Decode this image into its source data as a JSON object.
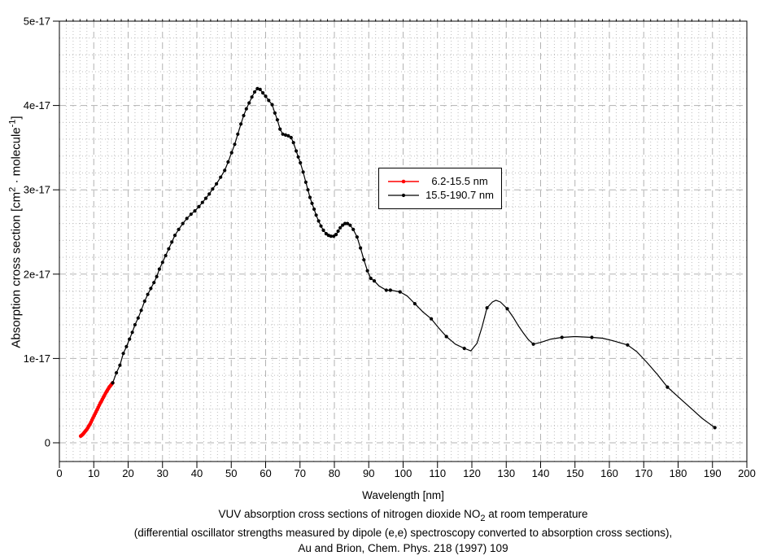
{
  "colors": {
    "background": "#ffffff",
    "axis": "#000000",
    "grid_major": "#b3b3b3",
    "grid_minor": "#bdbdbd",
    "series_red": "#ff0000",
    "series_black": "#000000"
  },
  "caption": {
    "line1_parts": {
      "a": "VUV absorption cross sections of nitrogen dioxide NO",
      "b": "2",
      "c": " at room temperature"
    },
    "line2": "(differential oscillator strengths measured by dipole (e,e) spectroscopy converted to absorption cross sections),",
    "line3": "Au and Brion, Chem. Phys. 218 (1997) 109"
  },
  "chart_data": {
    "type": "line",
    "title": "",
    "xlabel": "Wavelength [nm]",
    "ylabel": "Absorption cross section [cm2 · molecule-1]",
    "ylabel_parts": {
      "a": "Absorption cross section [cm",
      "b": "2",
      "c": " · molecule",
      "d": "-1",
      "e": "]"
    },
    "y_unit": "1e-17 cm^2 / molecule",
    "xlim": [
      0,
      200
    ],
    "ylim": [
      0,
      5
    ],
    "x_ticks": [
      0,
      10,
      20,
      30,
      40,
      50,
      60,
      70,
      80,
      90,
      100,
      110,
      120,
      130,
      140,
      150,
      160,
      170,
      180,
      190,
      200
    ],
    "y_ticks": [
      0,
      1,
      2,
      3,
      4,
      5
    ],
    "y_tick_labels": [
      "0",
      "1e-17",
      "2e-17",
      "3e-17",
      "4e-17",
      "5e-17"
    ],
    "grid": {
      "major": true,
      "minor": true,
      "x_major_step": 10,
      "x_minor_step": 2,
      "y_major_step": 1,
      "y_minor_step": 0.2
    },
    "legend": {
      "position": "upper-center-inside",
      "entries": [
        {
          "label": "6.2-15.5 nm",
          "color": "#ff0000"
        },
        {
          "label": "15.5-190.7 nm",
          "color": "#000000"
        }
      ]
    },
    "series": [
      {
        "name": "6.2-15.5 nm",
        "color": "#ff0000",
        "line_width": 2.5,
        "marker_size": 2.3,
        "points": [
          [
            6.2,
            0.08,
            1
          ],
          [
            6.5,
            0.09,
            1
          ],
          [
            6.8,
            0.1,
            1
          ],
          [
            7.1,
            0.115,
            1
          ],
          [
            7.4,
            0.13,
            1
          ],
          [
            7.7,
            0.145,
            1
          ],
          [
            8.0,
            0.16,
            1
          ],
          [
            8.3,
            0.18,
            1
          ],
          [
            8.6,
            0.2,
            1
          ],
          [
            8.9,
            0.22,
            1
          ],
          [
            9.2,
            0.245,
            1
          ],
          [
            9.5,
            0.27,
            1
          ],
          [
            9.8,
            0.295,
            1
          ],
          [
            10.1,
            0.32,
            1
          ],
          [
            10.4,
            0.345,
            1
          ],
          [
            10.7,
            0.37,
            1
          ],
          [
            11.0,
            0.395,
            1
          ],
          [
            11.3,
            0.42,
            1
          ],
          [
            11.6,
            0.445,
            1
          ],
          [
            11.9,
            0.47,
            1
          ],
          [
            12.2,
            0.49,
            1
          ],
          [
            12.5,
            0.515,
            1
          ],
          [
            12.8,
            0.54,
            1
          ],
          [
            13.1,
            0.56,
            1
          ],
          [
            13.4,
            0.585,
            1
          ],
          [
            13.7,
            0.605,
            1
          ],
          [
            14.0,
            0.625,
            1
          ],
          [
            14.3,
            0.645,
            1
          ],
          [
            14.6,
            0.665,
            1
          ],
          [
            14.9,
            0.68,
            1
          ],
          [
            15.2,
            0.695,
            1
          ],
          [
            15.5,
            0.71,
            1
          ]
        ]
      },
      {
        "name": "15.5-190.7 nm",
        "color": "#000000",
        "line_width": 1.2,
        "marker_size": 2.1,
        "points": [
          [
            15.5,
            0.71,
            1
          ],
          [
            16.6,
            0.83,
            1
          ],
          [
            17.6,
            0.92,
            1
          ],
          [
            18.6,
            1.06,
            1
          ],
          [
            19.5,
            1.14,
            1
          ],
          [
            20.4,
            1.23,
            1
          ],
          [
            21.2,
            1.31,
            1
          ],
          [
            22.0,
            1.4,
            1
          ],
          [
            22.9,
            1.48,
            1
          ],
          [
            23.8,
            1.57,
            1
          ],
          [
            24.8,
            1.68,
            1
          ],
          [
            25.7,
            1.76,
            1
          ],
          [
            26.6,
            1.83,
            1
          ],
          [
            27.5,
            1.9,
            1
          ],
          [
            28.3,
            1.97,
            1
          ],
          [
            29.1,
            2.06,
            1
          ],
          [
            30.0,
            2.14,
            1
          ],
          [
            30.9,
            2.22,
            1
          ],
          [
            31.8,
            2.3,
            1
          ],
          [
            32.7,
            2.38,
            1
          ],
          [
            33.6,
            2.46,
            1
          ],
          [
            34.7,
            2.53,
            1
          ],
          [
            35.9,
            2.6,
            1
          ],
          [
            37.1,
            2.66,
            1
          ],
          [
            38.3,
            2.71,
            1
          ],
          [
            39.4,
            2.75,
            1
          ],
          [
            40.6,
            2.8,
            1
          ],
          [
            41.6,
            2.85,
            1
          ],
          [
            42.6,
            2.9,
            1
          ],
          [
            43.6,
            2.95,
            1
          ],
          [
            44.6,
            3.01,
            1
          ],
          [
            45.7,
            3.07,
            1
          ],
          [
            46.9,
            3.15,
            1
          ],
          [
            48.1,
            3.23,
            1
          ],
          [
            49.1,
            3.33,
            1
          ],
          [
            50.1,
            3.44,
            1
          ],
          [
            51.0,
            3.54,
            1
          ],
          [
            51.9,
            3.66,
            1
          ],
          [
            52.8,
            3.78,
            1
          ],
          [
            53.6,
            3.88,
            1
          ],
          [
            54.4,
            3.96,
            1
          ],
          [
            55.2,
            4.03,
            1
          ],
          [
            56.0,
            4.1,
            1
          ],
          [
            56.8,
            4.16,
            1
          ],
          [
            57.6,
            4.2,
            1
          ],
          [
            58.4,
            4.19,
            1
          ],
          [
            59.2,
            4.15,
            1
          ],
          [
            60.0,
            4.11,
            1
          ],
          [
            60.9,
            4.06,
            1
          ],
          [
            61.9,
            4.01,
            1
          ],
          [
            62.7,
            3.91,
            1
          ],
          [
            63.4,
            3.83,
            1
          ],
          [
            64.2,
            3.72,
            1
          ],
          [
            65.0,
            3.66,
            1
          ],
          [
            65.8,
            3.65,
            1
          ],
          [
            66.6,
            3.64,
            1
          ],
          [
            67.4,
            3.62,
            1
          ],
          [
            68.1,
            3.56,
            1
          ],
          [
            68.9,
            3.46,
            1
          ],
          [
            69.5,
            3.39,
            1
          ],
          [
            70.1,
            3.32,
            1
          ],
          [
            70.9,
            3.21,
            1
          ],
          [
            71.7,
            3.09,
            1
          ],
          [
            72.3,
            3.0,
            1
          ],
          [
            72.9,
            2.91,
            1
          ],
          [
            73.5,
            2.84,
            1
          ],
          [
            74.1,
            2.77,
            1
          ],
          [
            74.7,
            2.7,
            1
          ],
          [
            75.4,
            2.63,
            1
          ],
          [
            76.1,
            2.57,
            1
          ],
          [
            76.8,
            2.52,
            1
          ],
          [
            77.6,
            2.48,
            1
          ],
          [
            78.3,
            2.46,
            1
          ],
          [
            79.0,
            2.45,
            1
          ],
          [
            79.8,
            2.45,
            1
          ],
          [
            80.5,
            2.47,
            1
          ],
          [
            81.1,
            2.51,
            1
          ],
          [
            81.7,
            2.55,
            1
          ],
          [
            82.4,
            2.58,
            1
          ],
          [
            83.1,
            2.6,
            1
          ],
          [
            83.8,
            2.6,
            1
          ],
          [
            84.6,
            2.58,
            1
          ],
          [
            85.5,
            2.53,
            1
          ],
          [
            86.6,
            2.44,
            1
          ],
          [
            87.6,
            2.31,
            1
          ],
          [
            88.6,
            2.17,
            1
          ],
          [
            89.6,
            2.04,
            1
          ],
          [
            90.6,
            1.95,
            1
          ],
          [
            91.6,
            1.92,
            1
          ],
          [
            93.0,
            1.86,
            0
          ],
          [
            95.1,
            1.81,
            1
          ],
          [
            96.3,
            1.81,
            1
          ],
          [
            97.7,
            1.8,
            0
          ],
          [
            99.1,
            1.79,
            1
          ],
          [
            101.2,
            1.74,
            0
          ],
          [
            103.4,
            1.65,
            1
          ],
          [
            105.8,
            1.55,
            0
          ],
          [
            108.2,
            1.47,
            1
          ],
          [
            110.4,
            1.36,
            0
          ],
          [
            112.6,
            1.26,
            1
          ],
          [
            115.2,
            1.17,
            0
          ],
          [
            117.8,
            1.12,
            1
          ],
          [
            119.7,
            1.09,
            0
          ],
          [
            121.5,
            1.18,
            0
          ],
          [
            123.0,
            1.38,
            0
          ],
          [
            124.4,
            1.6,
            1
          ],
          [
            126.0,
            1.67,
            0
          ],
          [
            127.0,
            1.69,
            0
          ],
          [
            128.3,
            1.67,
            0
          ],
          [
            130.3,
            1.59,
            1
          ],
          [
            132.0,
            1.49,
            0
          ],
          [
            133.5,
            1.39,
            0
          ],
          [
            135.0,
            1.3,
            0
          ],
          [
            136.5,
            1.22,
            0
          ],
          [
            137.9,
            1.17,
            1
          ],
          [
            140.0,
            1.19,
            0
          ],
          [
            143.0,
            1.23,
            0
          ],
          [
            146.2,
            1.25,
            1
          ],
          [
            150.0,
            1.26,
            0
          ],
          [
            154.9,
            1.25,
            1
          ],
          [
            158.0,
            1.24,
            0
          ],
          [
            161.0,
            1.21,
            0
          ],
          [
            165.3,
            1.16,
            1
          ],
          [
            168.0,
            1.08,
            0
          ],
          [
            171.0,
            0.95,
            0
          ],
          [
            174.0,
            0.81,
            0
          ],
          [
            176.9,
            0.66,
            1
          ],
          [
            181.0,
            0.51,
            0
          ],
          [
            184.0,
            0.4,
            0
          ],
          [
            187.0,
            0.29,
            0
          ],
          [
            189.0,
            0.23,
            0
          ],
          [
            190.7,
            0.18,
            1
          ]
        ]
      }
    ]
  }
}
